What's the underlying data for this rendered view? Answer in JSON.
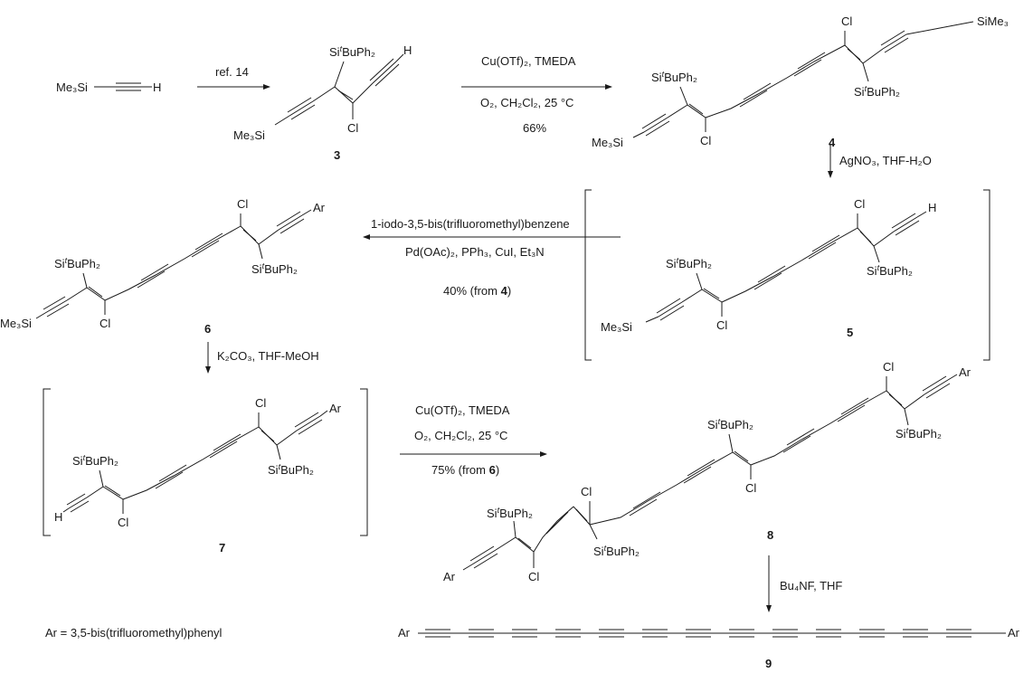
{
  "scheme": {
    "labels": {
      "tms": "Me₃Si",
      "h": "H",
      "cl": "Cl",
      "ar": "Ar",
      "sime3": "SiMe₃",
      "sibu_prefix": "Si",
      "sibu_t": "t",
      "sibu_suffix": "BuPh₂"
    },
    "reagents": {
      "step1": "ref. 14",
      "step2_line1": "Cu(OTf)₂, TMEDA",
      "step2_line2": "O₂, CH₂Cl₂, 25 °C",
      "step2_yield": "66%",
      "step3": "AgNO₃, THF-H₂O",
      "step4_line1": "1-iodo-3,5-bis(trifluoromethyl)benzene",
      "step4_line2": "Pd(OAc)₂, PPh₃, CuI, Et₃N",
      "step4_yield_a": "40% (from ",
      "step4_yield_b": "4",
      "step4_yield_c": ")",
      "step5": "K₂CO₃, THF-MeOH",
      "step6_line1": "Cu(OTf)₂, TMEDA",
      "step6_line2": "O₂, CH₂Cl₂, 25 °C",
      "step6_yield_a": "75% (from ",
      "step6_yield_b": "6",
      "step6_yield_c": ")",
      "step7": "Bu₄NF, THF"
    },
    "compounds": [
      "3",
      "4",
      "5",
      "6",
      "7",
      "8",
      "9"
    ],
    "footnote": "Ar = 3,5-bis(trifluoromethyl)phenyl"
  }
}
